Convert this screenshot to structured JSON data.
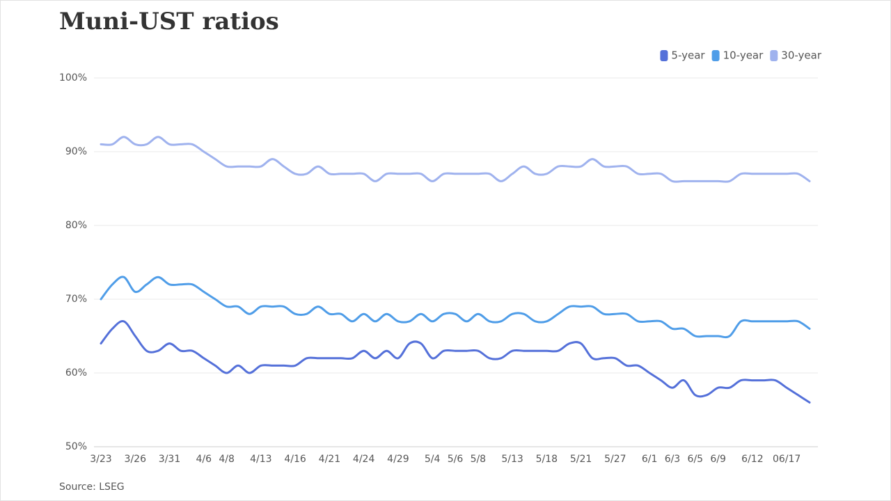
{
  "chart_data": {
    "type": "line",
    "title": "Muni-UST ratios",
    "source": "Source: LSEG",
    "categories": [
      "3/23",
      null,
      null,
      "3/26",
      null,
      null,
      "3/31",
      null,
      null,
      "4/6",
      null,
      "4/8",
      null,
      null,
      "4/13",
      null,
      null,
      "4/16",
      null,
      null,
      "4/21",
      null,
      null,
      "4/24",
      null,
      null,
      "4/29",
      null,
      null,
      "5/4",
      null,
      "5/6",
      null,
      "5/8",
      null,
      null,
      "5/13",
      null,
      null,
      "5/18",
      null,
      null,
      "5/21",
      null,
      null,
      "5/27",
      null,
      null,
      "6/1",
      null,
      "6/3",
      null,
      "6/5",
      null,
      "6/9",
      null,
      null,
      "6/12",
      null,
      null,
      "06/17",
      null,
      null
    ],
    "series": [
      {
        "name": "5-year",
        "color": "#5470d9",
        "values": [
          64,
          66,
          67,
          65,
          63,
          63,
          64,
          63,
          63,
          62,
          61,
          60,
          61,
          60,
          61,
          61,
          61,
          61,
          62,
          62,
          62,
          62,
          62,
          63,
          62,
          63,
          62,
          64,
          64,
          62,
          63,
          63,
          63,
          63,
          62,
          62,
          63,
          63,
          63,
          63,
          63,
          64,
          64,
          62,
          62,
          62,
          61,
          61,
          60,
          59,
          58,
          59,
          57,
          57,
          58,
          58,
          59,
          59,
          59,
          59,
          58,
          57,
          56
        ]
      },
      {
        "name": "10-year",
        "color": "#4f9de8",
        "values": [
          70,
          72,
          73,
          71,
          72,
          73,
          72,
          72,
          72,
          71,
          70,
          69,
          69,
          68,
          69,
          69,
          69,
          68,
          68,
          69,
          68,
          68,
          67,
          68,
          67,
          68,
          67,
          67,
          68,
          67,
          68,
          68,
          67,
          68,
          67,
          67,
          68,
          68,
          67,
          67,
          68,
          69,
          69,
          69,
          68,
          68,
          68,
          67,
          67,
          67,
          66,
          66,
          65,
          65,
          65,
          65,
          67,
          67,
          67,
          67,
          67,
          67,
          66
        ]
      },
      {
        "name": "30-year",
        "color": "#9fb2ee",
        "values": [
          91,
          91,
          92,
          91,
          91,
          92,
          91,
          91,
          91,
          90,
          89,
          88,
          88,
          88,
          88,
          89,
          88,
          87,
          87,
          88,
          87,
          87,
          87,
          87,
          86,
          87,
          87,
          87,
          87,
          86,
          87,
          87,
          87,
          87,
          87,
          86,
          87,
          88,
          87,
          87,
          88,
          88,
          88,
          89,
          88,
          88,
          88,
          87,
          87,
          87,
          86,
          86,
          86,
          86,
          86,
          86,
          87,
          87,
          87,
          87,
          87,
          87,
          86
        ]
      }
    ],
    "ylim": [
      50,
      100
    ],
    "yticks": [
      {
        "value": 50,
        "label": "50%"
      },
      {
        "value": 60,
        "label": "60%"
      },
      {
        "value": 70,
        "label": "70%"
      },
      {
        "value": 80,
        "label": "80%"
      },
      {
        "value": 90,
        "label": "90%"
      },
      {
        "value": 100,
        "label": "100%"
      }
    ],
    "grid": true
  }
}
